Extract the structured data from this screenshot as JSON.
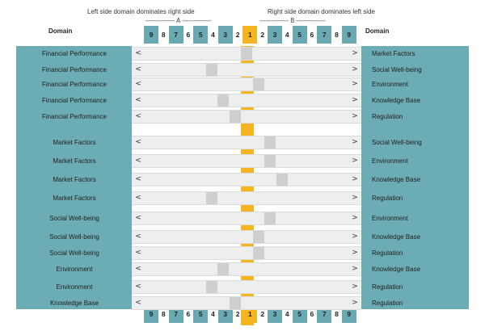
{
  "header": {
    "left_caption": "Left side domain dominates right side",
    "right_caption": "Right side domain dominates left side",
    "left_marker": "--------------- A ---------------",
    "right_marker": "--------------- B ---------------",
    "domain_left": "Domain",
    "domain_right": "Domain"
  },
  "scale": {
    "values": [
      "9",
      "8",
      "7",
      "6",
      "5",
      "4",
      "3",
      "2",
      "1",
      "2",
      "3",
      "4",
      "5",
      "6",
      "7",
      "8",
      "9"
    ],
    "boxed": [
      true,
      false,
      true,
      false,
      true,
      false,
      true,
      false,
      true,
      false,
      true,
      false,
      true,
      false,
      true,
      false,
      true
    ]
  },
  "controls": {
    "left_arrow": "<",
    "right_arrow": ">"
  },
  "colors": {
    "teal": "#6cacb4",
    "center": "#f3b521",
    "track": "#eeeeee",
    "thumb": "#cfcfcf"
  },
  "comparisons": [
    {
      "left": "Financial Performance",
      "right": "Market Factors",
      "value": 0
    },
    {
      "left": "Financial Performance",
      "right": "Social Well-being",
      "value": -3
    },
    {
      "left": "Financial Performance",
      "right": "Environment",
      "value": 1
    },
    {
      "left": "Financial Performance",
      "right": "Knowledge Base",
      "value": -2
    },
    {
      "left": "Financial Performance",
      "right": "Regulation",
      "value": -1
    },
    {
      "left": "Market Factors",
      "right": "Social Well-being",
      "value": 2
    },
    {
      "left": "Market Factors",
      "right": "Environment",
      "value": 2
    },
    {
      "left": "Market Factors",
      "right": "Knowledge Base",
      "value": 3
    },
    {
      "left": "Market Factors",
      "right": "Regulation",
      "value": -3
    },
    {
      "left": "Social Well-being",
      "right": "Environment",
      "value": 2
    },
    {
      "left": "Social Well-being",
      "right": "Knowledge Base",
      "value": 1
    },
    {
      "left": "Social Well-being",
      "right": "Regulation",
      "value": 1
    },
    {
      "left": "Environment",
      "right": "Knowledge Base",
      "value": -2
    },
    {
      "left": "Environment",
      "right": "Regulation",
      "value": -3
    },
    {
      "left": "Knowledge Base",
      "right": "Regulation",
      "value": -1
    }
  ]
}
